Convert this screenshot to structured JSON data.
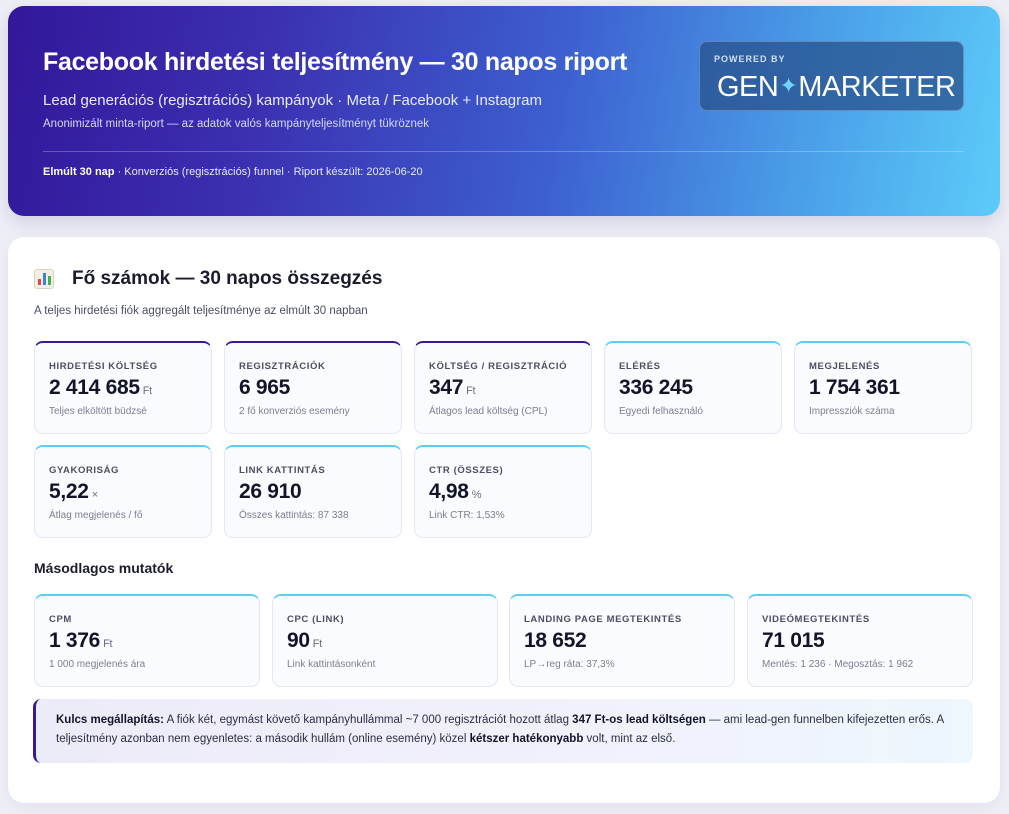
{
  "header": {
    "title": "Facebook hirdetési teljesítmény — 30 napos riport",
    "subtitle": "Lead generációs (regisztrációs) kampányok · Meta / Facebook + Instagram",
    "note": "Anonimizált minta-riport — az adatok valós kampányteljesítményt tükröznek",
    "meta_bold": "Elmúlt 30 nap",
    "meta_rest": " · Konverziós (regisztrációs) funnel · Riport készült: 2026-06-20",
    "badge_small": "POWERED BY",
    "badge_left": "GEN",
    "badge_right": "MARKETER",
    "badge_icon": "sparkle-icon"
  },
  "main": {
    "section_icon": "bar-chart-icon",
    "section_title": "Fő számok — 30 napos összegzés",
    "section_desc": "A teljes hirdetési fiók aggregált teljesítménye az elmúlt 30 napban",
    "kpis": [
      {
        "label": "HIRDETÉSI KÖLTSÉG",
        "value": "2 414 685",
        "unit": "Ft",
        "caption": "Teljes elköltött büdzsé"
      },
      {
        "label": "REGISZTRÁCIÓK",
        "value": "6 965",
        "unit": "",
        "caption": "2 fő konverziós esemény"
      },
      {
        "label": "KÖLTSÉG / REGISZTRÁCIÓ",
        "value": "347",
        "unit": "Ft",
        "caption": "Átlagos lead költség (CPL)"
      },
      {
        "label": "ELÉRÉS",
        "value": "336 245",
        "unit": "",
        "caption": "Egyedi felhasználó"
      },
      {
        "label": "MEGJELENÉS",
        "value": "1 754 361",
        "unit": "",
        "caption": "Impressziók száma"
      },
      {
        "label": "GYAKORISÁG",
        "value": "5,22",
        "unit": "×",
        "caption": "Átlag megjelenés / fő"
      },
      {
        "label": "LINK KATTINTÁS",
        "value": "26 910",
        "unit": "",
        "caption": "Összes kattintás: 87 338"
      },
      {
        "label": "CTR (ÖSSZES)",
        "value": "4,98",
        "unit": "%",
        "caption": "Link CTR: 1,53%"
      }
    ],
    "secondary_title": "Másodlagos mutatók",
    "secondary": [
      {
        "label": "CPM",
        "value": "1 376",
        "unit": "Ft",
        "caption": "1 000 megjelenés ára"
      },
      {
        "label": "CPC (LINK)",
        "value": "90",
        "unit": "Ft",
        "caption": "Link kattintásonként"
      },
      {
        "label": "LANDING PAGE MEGTEKINTÉS",
        "value": "18 652",
        "unit": "",
        "caption": "LP→reg ráta: 37,3%"
      },
      {
        "label": "VIDEÓMEGTEKINTÉS",
        "value": "71 015",
        "unit": "",
        "caption": "Mentés: 1 236 · Megosztás: 1 962"
      }
    ],
    "insight": {
      "lead": "Kulcs megállapítás:",
      "text1": " A fiók két, egymást követő kampányhullámmal ~7 000 regisztrációt hozott átlag ",
      "bold1": "347 Ft-os lead költségen",
      "text2": " — ami lead-gen funnelben kifejezetten erős. A teljesítmény azonban nem egyenletes: a második hullám (online esemény) közel ",
      "bold2": "kétszer hatékonyabb",
      "text3": " volt, mint az első."
    }
  },
  "colors": {
    "accent_purple": "#3a1793",
    "accent_cyan": "#5fcdf2",
    "tile_accent": [
      "purple",
      "purple",
      "purple",
      "cyan",
      "cyan",
      "cyan",
      "cyan",
      "cyan"
    ]
  }
}
